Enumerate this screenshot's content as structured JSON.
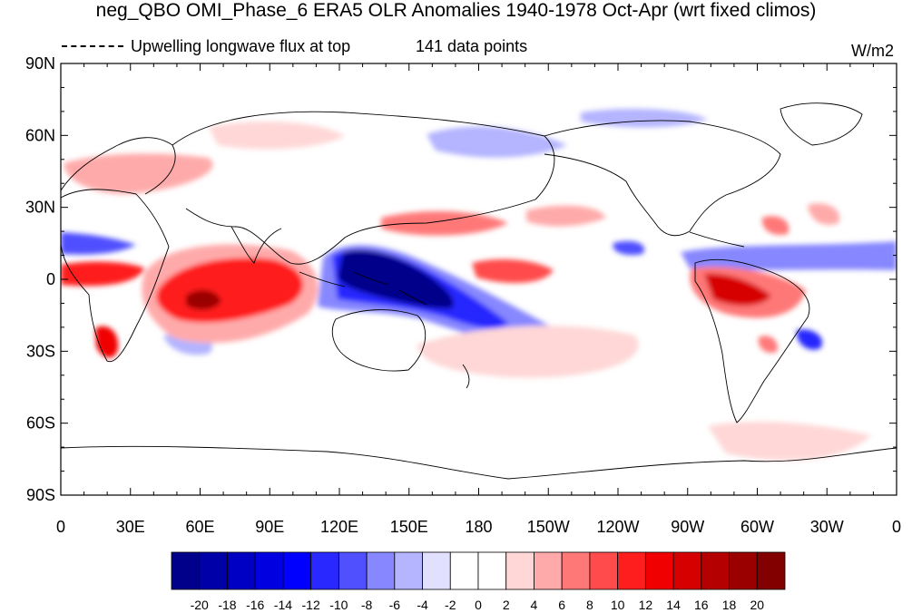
{
  "title": "neg_QBO OMI_Phase_6 ERA5 OLR Anomalies 1940-1978 Oct-Apr (wrt fixed climos)",
  "line_legend": "Upwelling longwave flux at top",
  "count_text": "141 data points",
  "units": "W/m2",
  "map": {
    "projection": "cylindrical equidistant",
    "lon_range": [
      0,
      360
    ],
    "lat_range": [
      -90,
      90
    ],
    "lat_ticks": [
      "90N",
      "60N",
      "30N",
      "0",
      "30S",
      "60S",
      "90S"
    ],
    "lon_ticks": [
      "0",
      "30E",
      "60E",
      "90E",
      "120E",
      "150E",
      "180",
      "150W",
      "120W",
      "90W",
      "60W",
      "30W",
      "0"
    ],
    "fill_palette": "blue-white-red diverging",
    "coastlines": "black outlines"
  },
  "colorbar": {
    "labels": [
      "-20",
      "-18",
      "-16",
      "-14",
      "-12",
      "-10",
      "-8",
      "-6",
      "-4",
      "-2",
      "0",
      "2",
      "4",
      "6",
      "8",
      "10",
      "12",
      "14",
      "16",
      "18",
      "20"
    ],
    "colors": [
      "#00008b",
      "#0000a8",
      "#0000c4",
      "#0000e0",
      "#0000ff",
      "#2828ff",
      "#5050ff",
      "#8787ff",
      "#b4b4ff",
      "#e1e1ff",
      "#ffffff",
      "#ffffff",
      "#ffd7d7",
      "#ffaaaa",
      "#ff7878",
      "#ff4b4b",
      "#ff1e1e",
      "#f00000",
      "#d70000",
      "#b40000",
      "#9b0000",
      "#820000"
    ]
  }
}
